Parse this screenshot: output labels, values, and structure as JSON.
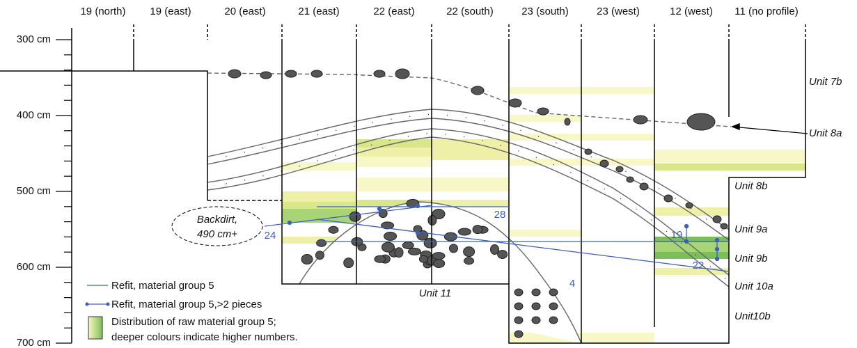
{
  "columns": [
    "19 (north)",
    "19 (east)",
    "20 (east)",
    "21 (east)",
    "22 (east)",
    "22 (south)",
    "23 (south)",
    "23 (west)",
    "12 (west)",
    "11 (no profile)"
  ],
  "depth_labels": [
    "300 cm",
    "400 cm",
    "500 cm",
    "600 cm",
    "700 cm"
  ],
  "units": [
    "Unit 7b",
    "Unit 8a",
    "Unit 8b",
    "Unit 9a",
    "Unit 9b",
    "Unit 10a",
    "Unit10b",
    "Unit 11"
  ],
  "refit_labels": [
    "28",
    "24",
    "4",
    "19",
    "22"
  ],
  "backdirt": [
    "Backdirt,",
    "490 cm+"
  ],
  "legend": {
    "refit": "Refit, material group 5",
    "refit_multi": "Refit, material group 5,>2 pieces",
    "distribution": [
      "Distribution of raw material group 5;",
      "deeper colours indicate higher numbers."
    ]
  }
}
